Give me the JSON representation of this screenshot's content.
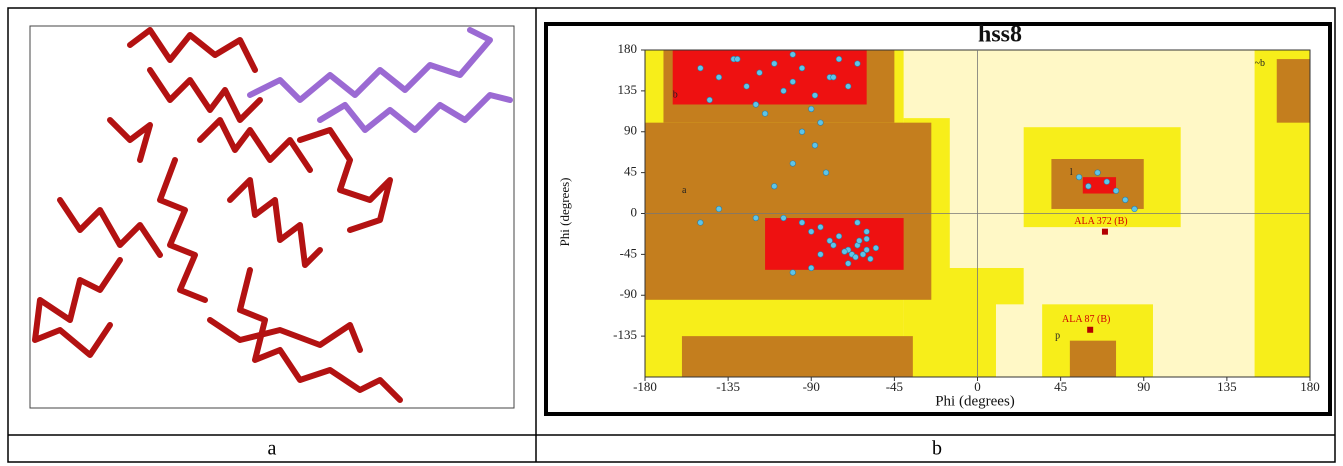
{
  "panels": [
    {
      "caption": "a"
    },
    {
      "caption": "b",
      "plot": {
        "title": "hss8",
        "x_label": "Phi (degrees)",
        "y_label": "Phi (degrees)",
        "xlim": [
          -180,
          180
        ],
        "ylim": [
          -180,
          180
        ],
        "xticks": [
          -180,
          -135,
          -90,
          -45,
          0,
          45,
          90,
          135,
          180
        ],
        "yticks": [
          180,
          135,
          90,
          45,
          0,
          -45,
          -90,
          -135
        ],
        "region_labels": [
          "b",
          "a",
          "l",
          "p",
          "~b"
        ],
        "points": {
          "x": [
            -150,
            -140,
            -132,
            -125,
            -118,
            -110,
            -100,
            -95,
            -88,
            -80,
            -75,
            -70,
            -65,
            -145,
            -120,
            -105,
            -90,
            -85,
            -78,
            -130,
            -115,
            -100,
            -95,
            -88,
            -100,
            -82,
            -110,
            -120,
            -140,
            -150,
            -105,
            -95,
            -90,
            -85,
            -80,
            -75,
            -70,
            -65,
            -62,
            -60,
            -58,
            -55,
            -70,
            -68,
            -64,
            -78,
            -72,
            -66,
            -60,
            -85,
            -90,
            -100,
            -60,
            -65,
            55,
            60,
            65,
            70,
            75,
            80,
            85
          ],
          "y": [
            160,
            150,
            170,
            140,
            155,
            165,
            145,
            160,
            130,
            150,
            170,
            140,
            165,
            125,
            120,
            135,
            115,
            100,
            150,
            170,
            110,
            175,
            90,
            75,
            55,
            45,
            30,
            -5,
            5,
            -10,
            -5,
            -10,
            -20,
            -15,
            -30,
            -25,
            -40,
            -35,
            -45,
            -40,
            -50,
            -38,
            -55,
            -45,
            -30,
            -35,
            -42,
            -48,
            -28,
            -45,
            -60,
            -65,
            -20,
            -10,
            40,
            30,
            45,
            35,
            25,
            15,
            5
          ]
        },
        "annotations": [
          {
            "text": "ALA 372 (B)",
            "x": 69,
            "y": -20
          },
          {
            "text": "ALA 87 (B)",
            "x": 61,
            "y": -128
          }
        ]
      }
    }
  ]
}
